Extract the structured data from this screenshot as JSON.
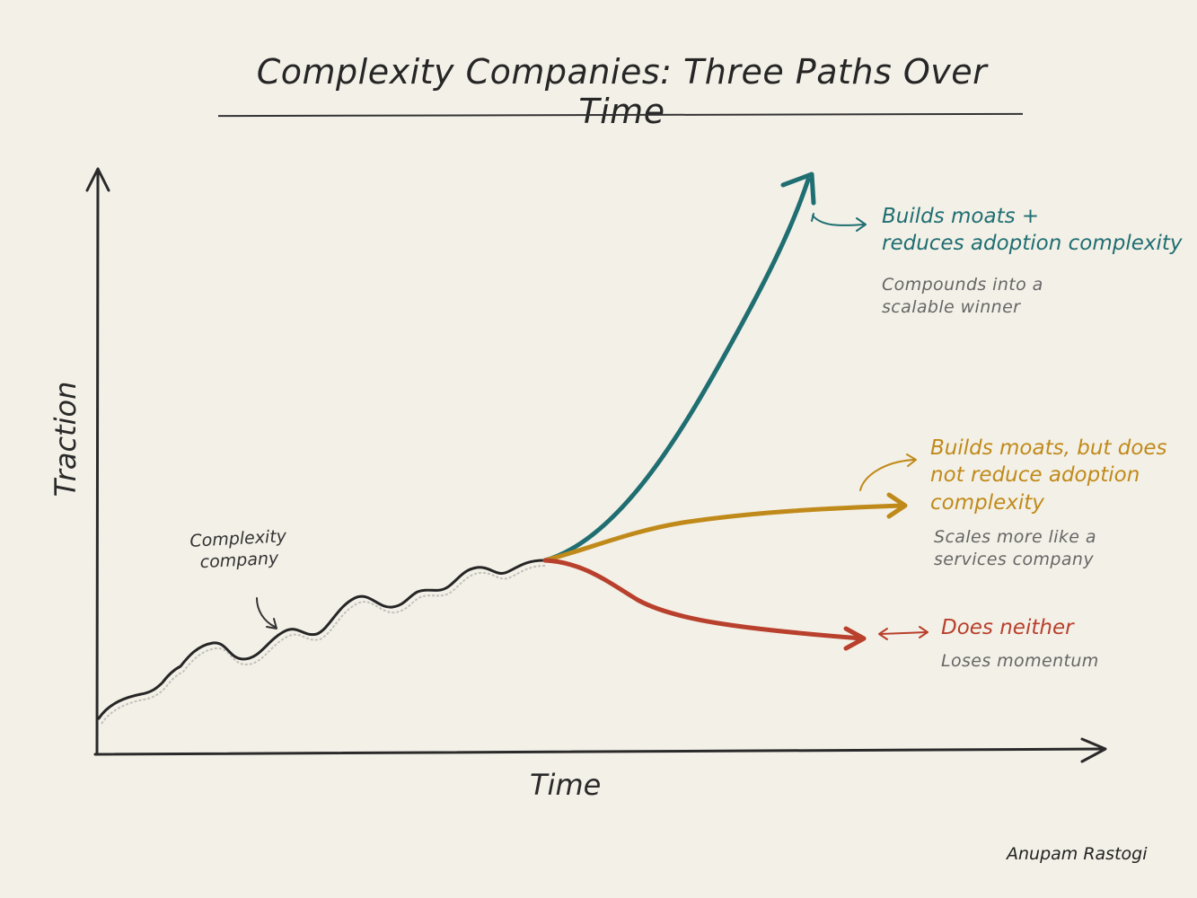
{
  "title": "Complexity Companies: Three Paths Over Time",
  "axes": {
    "y_label": "Traction",
    "x_label": "Time"
  },
  "base_curve_label": [
    "Complexity",
    "company"
  ],
  "paths": [
    {
      "id": "winner",
      "color": "#1f6e72",
      "label_lines": [
        "Builds moats +",
        "reduces adoption complexity"
      ],
      "note_lines": [
        "Compounds into a",
        "scalable winner"
      ]
    },
    {
      "id": "services",
      "color": "#c08a1a",
      "label_lines": [
        "Builds moats, but does",
        "not reduce adoption",
        "complexity"
      ],
      "note_lines": [
        "Scales more like a",
        "services company"
      ]
    },
    {
      "id": "neither",
      "color": "#b8402c",
      "label_lines": [
        "Does neither"
      ],
      "note_lines": [
        "Loses momentum"
      ]
    }
  ],
  "signature": "Anupam Rastogi"
}
